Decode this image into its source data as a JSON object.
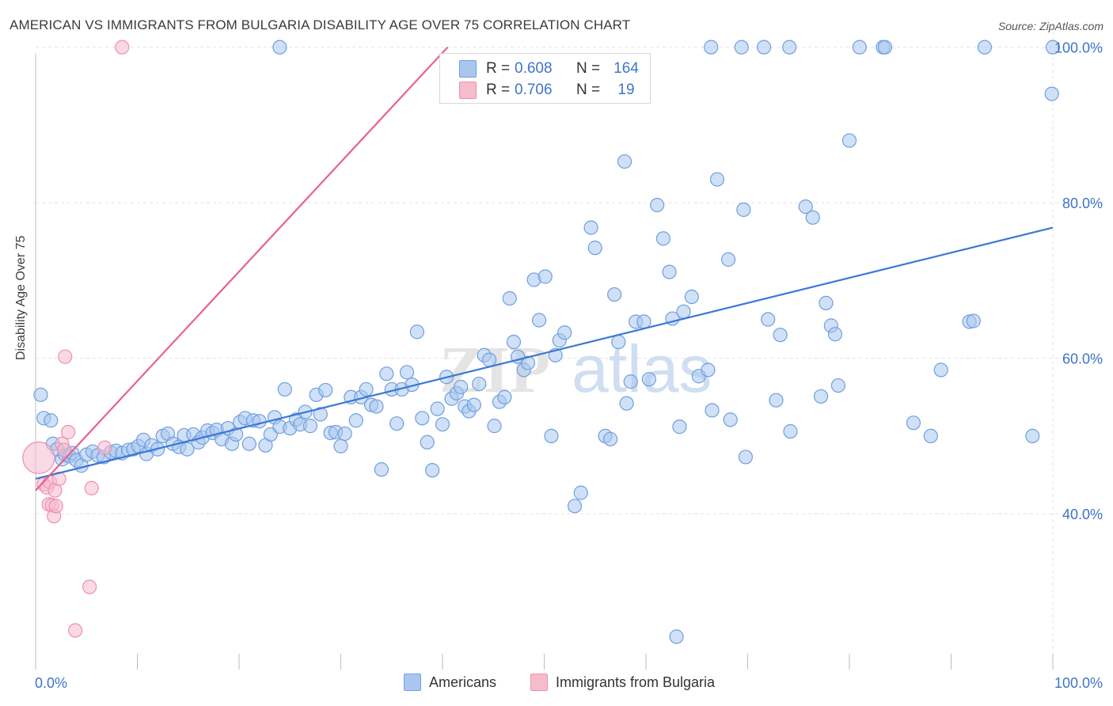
{
  "header": {
    "title": "AMERICAN VS IMMIGRANTS FROM BULGARIA DISABILITY AGE OVER 75 CORRELATION CHART",
    "source": "Source: ZipAtlas.com"
  },
  "colors": {
    "americans_fill": "#a9c6ef",
    "americans_stroke": "#6f9fe0",
    "americans_line": "#3a78d4",
    "bulgaria_fill": "#f6bccd",
    "bulgaria_stroke": "#ef8fac",
    "bulgaria_line": "#e8608c",
    "tick_label": "#3f74c9",
    "grid": "#e3e3e3"
  },
  "legend": {
    "row1": {
      "r_label": "R =",
      "r_value": "0.608",
      "n_label": "N =",
      "n_value": "164"
    },
    "row2": {
      "r_label": "R =",
      "r_value": "0.706",
      "n_label": "N =",
      "n_value": "19"
    }
  },
  "bottom_legend": {
    "americans": "Americans",
    "bulgaria": "Immigrants from Bulgaria"
  },
  "watermark": {
    "zip": "ZIP",
    "atlas": "atlas"
  },
  "chart_data": {
    "type": "scatter",
    "ylabel": "Disability Age Over 75",
    "xlim": [
      0,
      100
    ],
    "ylim": [
      22,
      102
    ],
    "x_tick_labels": [
      "0.0%",
      "100.0%"
    ],
    "y_ticks": [
      40,
      60,
      80,
      100
    ],
    "y_tick_labels": [
      "40.0%",
      "60.0%",
      "80.0%",
      "100.0%"
    ],
    "grid": true,
    "legend_position": "top-center",
    "series": [
      {
        "name": "Americans",
        "r": 0.608,
        "n": 164,
        "trend": [
          [
            0,
            44.5
          ],
          [
            100,
            76.8
          ]
        ],
        "points": [
          [
            0.5,
            55.3
          ],
          [
            0.8,
            52.3
          ],
          [
            1.5,
            52.0
          ],
          [
            1.7,
            49.0
          ],
          [
            2.1,
            48.3
          ],
          [
            2.6,
            47.0
          ],
          [
            2.9,
            47.6
          ],
          [
            3.3,
            47.4
          ],
          [
            3.6,
            47.8
          ],
          [
            4.0,
            46.9
          ],
          [
            4.5,
            46.2
          ],
          [
            5.0,
            47.6
          ],
          [
            5.6,
            48.0
          ],
          [
            6.1,
            47.5
          ],
          [
            6.7,
            47.3
          ],
          [
            7.4,
            47.9
          ],
          [
            7.9,
            48.1
          ],
          [
            8.5,
            47.8
          ],
          [
            9.1,
            48.2
          ],
          [
            9.6,
            48.3
          ],
          [
            10.1,
            48.7
          ],
          [
            10.6,
            49.5
          ],
          [
            10.9,
            47.7
          ],
          [
            11.4,
            48.8
          ],
          [
            12.0,
            48.3
          ],
          [
            12.5,
            50.0
          ],
          [
            13.0,
            50.3
          ],
          [
            13.5,
            49.0
          ],
          [
            14.1,
            48.6
          ],
          [
            14.6,
            50.1
          ],
          [
            14.9,
            48.3
          ],
          [
            15.5,
            50.2
          ],
          [
            16.0,
            49.2
          ],
          [
            16.4,
            49.8
          ],
          [
            16.9,
            50.7
          ],
          [
            17.4,
            50.4
          ],
          [
            17.8,
            50.8
          ],
          [
            18.3,
            49.6
          ],
          [
            18.9,
            51.0
          ],
          [
            19.3,
            49.0
          ],
          [
            19.7,
            50.2
          ],
          [
            20.1,
            51.8
          ],
          [
            20.6,
            52.3
          ],
          [
            21.0,
            49.0
          ],
          [
            21.4,
            52.0
          ],
          [
            22.0,
            51.9
          ],
          [
            22.6,
            48.8
          ],
          [
            23.1,
            50.2
          ],
          [
            23.5,
            52.4
          ],
          [
            24.0,
            51.2
          ],
          [
            24.5,
            56.0
          ],
          [
            25.0,
            51.0
          ],
          [
            25.6,
            52.1
          ],
          [
            26.0,
            51.5
          ],
          [
            26.5,
            53.1
          ],
          [
            27.0,
            51.3
          ],
          [
            27.6,
            55.3
          ],
          [
            28.0,
            52.8
          ],
          [
            28.5,
            55.9
          ],
          [
            29.0,
            50.4
          ],
          [
            29.5,
            50.5
          ],
          [
            30.0,
            48.7
          ],
          [
            30.4,
            50.3
          ],
          [
            31.0,
            55.0
          ],
          [
            31.5,
            52.0
          ],
          [
            32.0,
            55.0
          ],
          [
            32.5,
            56.0
          ],
          [
            33.0,
            54.0
          ],
          [
            33.5,
            53.8
          ],
          [
            34.0,
            45.7
          ],
          [
            34.5,
            58.0
          ],
          [
            35.0,
            56.0
          ],
          [
            35.5,
            51.6
          ],
          [
            36.0,
            56.0
          ],
          [
            36.5,
            58.2
          ],
          [
            37.0,
            56.6
          ],
          [
            37.5,
            63.4
          ],
          [
            38.0,
            52.3
          ],
          [
            38.5,
            49.2
          ],
          [
            39.0,
            45.6
          ],
          [
            39.5,
            53.5
          ],
          [
            40.0,
            51.5
          ],
          [
            40.4,
            57.6
          ],
          [
            40.9,
            54.8
          ],
          [
            41.4,
            55.5
          ],
          [
            41.8,
            56.3
          ],
          [
            42.2,
            53.8
          ],
          [
            42.6,
            53.2
          ],
          [
            43.1,
            54.0
          ],
          [
            43.6,
            56.7
          ],
          [
            44.1,
            60.4
          ],
          [
            44.6,
            59.8
          ],
          [
            45.1,
            51.3
          ],
          [
            45.6,
            54.4
          ],
          [
            46.1,
            55.0
          ],
          [
            46.6,
            67.7
          ],
          [
            47.0,
            62.1
          ],
          [
            47.4,
            60.2
          ],
          [
            48.0,
            58.5
          ],
          [
            48.4,
            59.4
          ],
          [
            49.0,
            70.1
          ],
          [
            49.5,
            64.9
          ],
          [
            50.1,
            70.5
          ],
          [
            50.7,
            50.0
          ],
          [
            51.1,
            60.4
          ],
          [
            51.5,
            62.3
          ],
          [
            52.0,
            63.3
          ],
          [
            53.0,
            41.0
          ],
          [
            53.6,
            42.7
          ],
          [
            54.6,
            76.8
          ],
          [
            55.0,
            74.2
          ],
          [
            56.0,
            50.0
          ],
          [
            56.5,
            49.6
          ],
          [
            56.9,
            68.2
          ],
          [
            57.3,
            62.1
          ],
          [
            57.9,
            85.3
          ],
          [
            58.1,
            54.2
          ],
          [
            58.5,
            57.0
          ],
          [
            59.0,
            64.7
          ],
          [
            59.8,
            64.7
          ],
          [
            60.3,
            57.3
          ],
          [
            61.1,
            79.7
          ],
          [
            61.7,
            75.4
          ],
          [
            62.3,
            71.1
          ],
          [
            62.6,
            65.1
          ],
          [
            63.3,
            51.2
          ],
          [
            63.7,
            66.0
          ],
          [
            64.5,
            67.9
          ],
          [
            65.2,
            57.7
          ],
          [
            66.1,
            58.5
          ],
          [
            66.5,
            53.3
          ],
          [
            67.0,
            83.0
          ],
          [
            68.1,
            72.7
          ],
          [
            68.3,
            52.1
          ],
          [
            69.6,
            79.1
          ],
          [
            69.8,
            47.3
          ],
          [
            72.0,
            65.0
          ],
          [
            72.8,
            54.6
          ],
          [
            73.2,
            63.0
          ],
          [
            74.2,
            50.6
          ],
          [
            75.7,
            79.5
          ],
          [
            76.4,
            78.1
          ],
          [
            77.2,
            55.1
          ],
          [
            77.7,
            67.1
          ],
          [
            78.2,
            64.2
          ],
          [
            78.6,
            63.1
          ],
          [
            78.9,
            56.5
          ],
          [
            80.0,
            88.0
          ],
          [
            86.3,
            51.7
          ],
          [
            88.0,
            50.0
          ],
          [
            89.0,
            58.5
          ],
          [
            91.8,
            64.7
          ],
          [
            92.2,
            64.8
          ],
          [
            98.0,
            50.0
          ],
          [
            99.9,
            94.0
          ],
          [
            100.0,
            100.0
          ],
          [
            24.0,
            100.0
          ],
          [
            66.4,
            100.0
          ],
          [
            69.4,
            100.0
          ],
          [
            71.6,
            100.0
          ],
          [
            74.1,
            100.0
          ],
          [
            81.0,
            100.0
          ],
          [
            83.3,
            100.0
          ],
          [
            83.5,
            100.0
          ],
          [
            93.3,
            100.0
          ],
          [
            63.0,
            24.2
          ]
        ]
      },
      {
        "name": "Immigrants from Bulgaria",
        "r": 0.706,
        "n": 19,
        "trend": [
          [
            0,
            43.0
          ],
          [
            40.5,
            100.0
          ]
        ],
        "points": [
          [
            0.3,
            47.2
          ],
          [
            0.8,
            43.8
          ],
          [
            1.1,
            43.4
          ],
          [
            1.3,
            41.2
          ],
          [
            1.4,
            44.1
          ],
          [
            1.6,
            41.1
          ],
          [
            1.8,
            39.7
          ],
          [
            1.9,
            43.0
          ],
          [
            2.0,
            41.0
          ],
          [
            2.3,
            44.5
          ],
          [
            2.6,
            49.0
          ],
          [
            2.8,
            48.2
          ],
          [
            2.9,
            60.2
          ],
          [
            3.2,
            50.5
          ],
          [
            3.9,
            25.0
          ],
          [
            5.3,
            30.6
          ],
          [
            5.5,
            43.3
          ],
          [
            8.5,
            100.0
          ],
          [
            6.8,
            48.5
          ]
        ]
      }
    ]
  }
}
